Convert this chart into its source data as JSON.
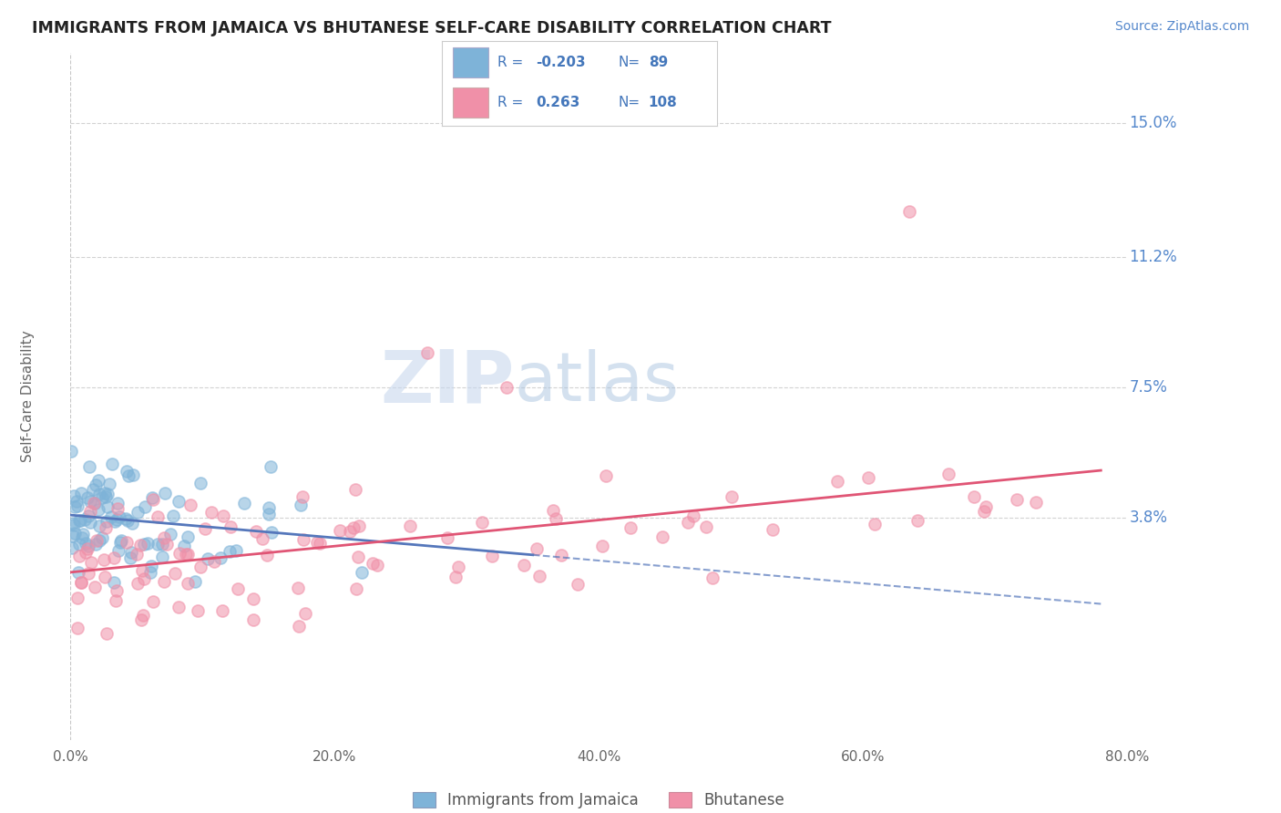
{
  "title": "IMMIGRANTS FROM JAMAICA VS BHUTANESE SELF-CARE DISABILITY CORRELATION CHART",
  "source": "Source: ZipAtlas.com",
  "ylabel": "Self-Care Disability",
  "xlim": [
    0.0,
    80.0
  ],
  "ylim": [
    -2.5,
    17.0
  ],
  "blue_R": -0.203,
  "blue_N": 89,
  "pink_R": 0.263,
  "pink_N": 108,
  "blue_color": "#7eb3d8",
  "pink_color": "#f090a8",
  "blue_line_color": "#5577bb",
  "pink_line_color": "#e05575",
  "title_fontsize": 12.5,
  "watermark_zip": "ZIP",
  "watermark_atlas": "atlas",
  "background_color": "#ffffff",
  "grid_color": "#c8c8c8",
  "right_label_color": "#5588cc",
  "legend_text_color": "#4477bb",
  "axis_color": "#888888",
  "right_labels": [
    [
      "15.0%",
      15.0
    ],
    [
      "11.2%",
      11.2
    ],
    [
      "7.5%",
      7.5
    ],
    [
      "3.8%",
      3.8
    ]
  ],
  "xtick_labels": [
    "0.0%",
    "20.0%",
    "40.0%",
    "60.0%",
    "80.0%"
  ],
  "xtick_vals": [
    0,
    20,
    40,
    60,
    80
  ]
}
